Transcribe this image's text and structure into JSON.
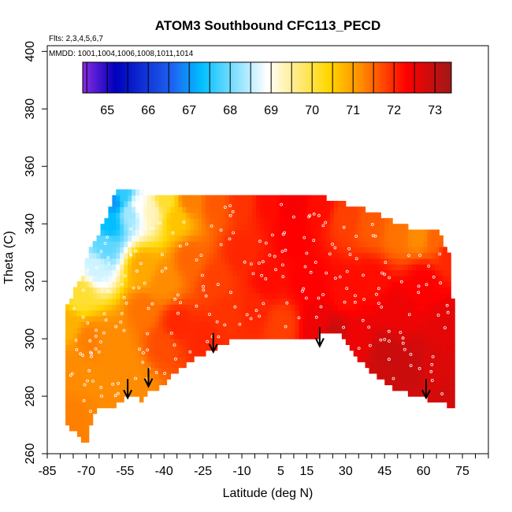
{
  "chart_data": {
    "type": "heatmap",
    "title": "ATOM3 Southbound CFC113_PECD",
    "annotations": [
      "Flts: 2,3,4,5,6,7",
      "MMDD: 1001,1004,1006,1008,1011,1014"
    ],
    "xlabel": "Latitude (deg N)",
    "ylabel": "Theta (C)",
    "xlim": [
      -85,
      85
    ],
    "ylim": [
      260,
      402
    ],
    "x_tick_labels": [
      "-85",
      "-70",
      "-55",
      "-40",
      "-25",
      "-10",
      "5",
      "15",
      "30",
      "45",
      "60",
      "75"
    ],
    "x_tick_values": [
      -85,
      -70,
      -55,
      -40,
      -25,
      -10,
      5,
      15,
      30,
      45,
      60,
      75
    ],
    "x_minor_step": 5,
    "y_tick_labels": [
      "260",
      "280",
      "300",
      "320",
      "340",
      "360",
      "380",
      "400"
    ],
    "y_tick_values": [
      260,
      280,
      300,
      320,
      340,
      360,
      380,
      400
    ],
    "colorbar": {
      "range": [
        64.4,
        73.4
      ],
      "tick_labels": [
        "65",
        "66",
        "67",
        "68",
        "69",
        "70",
        "71",
        "72",
        "73"
      ],
      "tick_values": [
        65,
        66,
        67,
        68,
        69,
        70,
        71,
        72,
        73
      ],
      "colors": [
        "#8a2be2",
        "#0000bb",
        "#1e64f0",
        "#00bfff",
        "#ffffff",
        "#ffd700",
        "#ff8c00",
        "#ff0000",
        "#a01818"
      ],
      "color_stops": [
        64.4,
        65.2,
        66.6,
        67.3,
        68.9,
        70.4,
        71.2,
        72.3,
        73.4
      ]
    },
    "field_shape": {
      "lower_boundary": [
        [
          -77,
          270
        ],
        [
          -74,
          267
        ],
        [
          -72,
          264
        ],
        [
          -69,
          264
        ],
        [
          -68,
          273
        ],
        [
          -66,
          275
        ],
        [
          -60,
          276
        ],
        [
          -55,
          280
        ],
        [
          -52,
          281
        ],
        [
          -49,
          278
        ],
        [
          -46,
          281
        ],
        [
          -42,
          283
        ],
        [
          -36,
          288
        ],
        [
          -28,
          293
        ],
        [
          -20,
          297
        ],
        [
          -12,
          300
        ],
        [
          0,
          300
        ],
        [
          5,
          300
        ],
        [
          12,
          301
        ],
        [
          20,
          301
        ],
        [
          26,
          302
        ],
        [
          30,
          300
        ],
        [
          36,
          292
        ],
        [
          42,
          287
        ],
        [
          50,
          282
        ],
        [
          58,
          280
        ],
        [
          65,
          278
        ],
        [
          72,
          276
        ]
      ],
      "upper_boundary": [
        [
          -78,
          309
        ],
        [
          -76,
          313
        ],
        [
          -73,
          319
        ],
        [
          -69,
          329
        ],
        [
          -65,
          336
        ],
        [
          -61,
          344
        ],
        [
          -58,
          351
        ],
        [
          -52,
          352
        ],
        [
          -47,
          349
        ],
        [
          -38,
          350
        ],
        [
          -25,
          350
        ],
        [
          -12,
          350
        ],
        [
          0,
          350
        ],
        [
          8,
          350
        ],
        [
          15,
          349
        ],
        [
          22,
          348
        ],
        [
          30,
          346
        ],
        [
          38,
          344
        ],
        [
          46,
          341
        ],
        [
          54,
          338
        ],
        [
          60,
          337
        ],
        [
          66,
          337
        ],
        [
          70,
          328
        ],
        [
          72,
          303
        ]
      ],
      "control_points": [
        [
          -77,
          272,
          71.3
        ],
        [
          -77,
          290,
          71.2
        ],
        [
          -77,
          305,
          70.8
        ],
        [
          -72,
          315,
          70.1
        ],
        [
          -69,
          300,
          71.3
        ],
        [
          -66,
          325,
          68.6
        ],
        [
          -63,
          332,
          67.9
        ],
        [
          -61,
          340,
          67.3
        ],
        [
          -59,
          348,
          67.0
        ],
        [
          -56,
          350,
          67.6
        ],
        [
          -53,
          344,
          68.3
        ],
        [
          -50,
          346,
          68.9
        ],
        [
          -45,
          345,
          69.3
        ],
        [
          -40,
          348,
          70.1
        ],
        [
          -35,
          342,
          70.6
        ],
        [
          -30,
          348,
          71.3
        ],
        [
          -20,
          347,
          71.6
        ],
        [
          -10,
          348,
          71.9
        ],
        [
          0,
          348,
          72.2
        ],
        [
          10,
          348,
          72.4
        ],
        [
          20,
          346,
          72.2
        ],
        [
          30,
          342,
          71.8
        ],
        [
          40,
          340,
          71.6
        ],
        [
          50,
          337,
          71.4
        ],
        [
          58,
          336,
          71.2
        ],
        [
          65,
          335,
          71.5
        ],
        [
          70,
          330,
          72.0
        ],
        [
          -60,
          300,
          71.2
        ],
        [
          -55,
          290,
          71.2
        ],
        [
          -50,
          282,
          71.2
        ],
        [
          -48,
          310,
          71.4
        ],
        [
          -48,
          325,
          70.9
        ],
        [
          -40,
          320,
          71.2
        ],
        [
          -40,
          298,
          71.7
        ],
        [
          -35,
          305,
          72.0
        ],
        [
          -30,
          328,
          71.5
        ],
        [
          -25,
          300,
          72.0
        ],
        [
          -20,
          320,
          71.8
        ],
        [
          -15,
          310,
          71.9
        ],
        [
          -10,
          330,
          72.0
        ],
        [
          -5,
          310,
          72.0
        ],
        [
          0,
          320,
          72.2
        ],
        [
          5,
          305,
          71.8
        ],
        [
          10,
          335,
          72.3
        ],
        [
          15,
          320,
          72.3
        ],
        [
          20,
          305,
          72.5
        ],
        [
          25,
          302,
          72.9
        ],
        [
          30,
          315,
          72.2
        ],
        [
          35,
          300,
          72.5
        ],
        [
          40,
          320,
          72.2
        ],
        [
          45,
          295,
          72.9
        ],
        [
          50,
          310,
          72.5
        ],
        [
          55,
          290,
          72.9
        ],
        [
          60,
          320,
          72.3
        ],
        [
          65,
          290,
          72.7
        ],
        [
          70,
          305,
          72.6
        ],
        [
          70,
          280,
          72.8
        ]
      ]
    },
    "arrows": [
      {
        "lat": -54,
        "theta": 286
      },
      {
        "lat": -46,
        "theta": 290
      },
      {
        "lat": -21,
        "theta": 302
      },
      {
        "lat": 20,
        "theta": 304
      },
      {
        "lat": 61,
        "theta": 286
      }
    ]
  }
}
